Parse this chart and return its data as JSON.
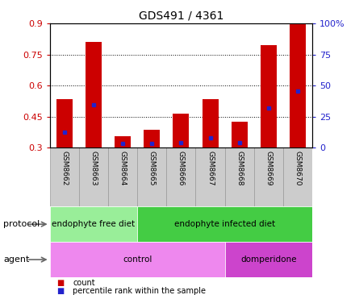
{
  "title": "GDS491 / 4361",
  "samples": [
    "GSM8662",
    "GSM8663",
    "GSM8664",
    "GSM8665",
    "GSM8666",
    "GSM8667",
    "GSM8668",
    "GSM8669",
    "GSM8670"
  ],
  "bar_tops": [
    0.535,
    0.81,
    0.355,
    0.385,
    0.465,
    0.535,
    0.425,
    0.795,
    0.9
  ],
  "bar_bottom": 0.3,
  "blue_positions": [
    0.375,
    0.505,
    0.32,
    0.32,
    0.325,
    0.345,
    0.325,
    0.49,
    0.575
  ],
  "ylim": [
    0.3,
    0.9
  ],
  "yticks_left": [
    0.3,
    0.45,
    0.6,
    0.75,
    0.9
  ],
  "yticks_right": [
    0,
    25,
    50,
    75,
    100
  ],
  "bar_color": "#cc0000",
  "blue_color": "#2222cc",
  "grid_color": "#000000",
  "left_tick_color": "#cc0000",
  "right_tick_color": "#2222cc",
  "protocol_groups": [
    {
      "label": "endophyte free diet",
      "start": 0,
      "end": 3,
      "color": "#99ee99"
    },
    {
      "label": "endophyte infected diet",
      "start": 3,
      "end": 9,
      "color": "#44cc44"
    }
  ],
  "agent_groups": [
    {
      "label": "control",
      "start": 0,
      "end": 6,
      "color": "#ee88ee"
    },
    {
      "label": "domperidone",
      "start": 6,
      "end": 9,
      "color": "#cc44cc"
    }
  ],
  "legend_items": [
    {
      "color": "#cc0000",
      "label": "count"
    },
    {
      "color": "#2222cc",
      "label": "percentile rank within the sample"
    }
  ],
  "sample_bg_color": "#cccccc",
  "background_color": "#ffffff",
  "bar_width": 0.55
}
